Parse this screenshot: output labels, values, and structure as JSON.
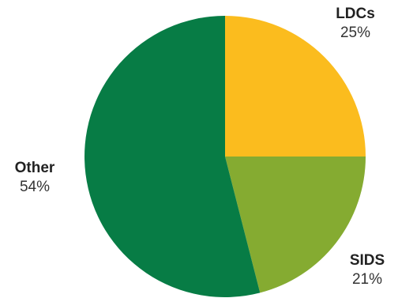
{
  "chart_data": {
    "type": "pie",
    "title": "",
    "slices": [
      {
        "label": "LDCs",
        "value": 25,
        "display": "25%",
        "color": "#fbbc1e"
      },
      {
        "label": "SIDS",
        "value": 21,
        "display": "21%",
        "color": "#85ab31"
      },
      {
        "label": "Other",
        "value": 54,
        "display": "54%",
        "color": "#077c45"
      }
    ],
    "start_angle_deg": 0,
    "direction": "clockwise"
  }
}
